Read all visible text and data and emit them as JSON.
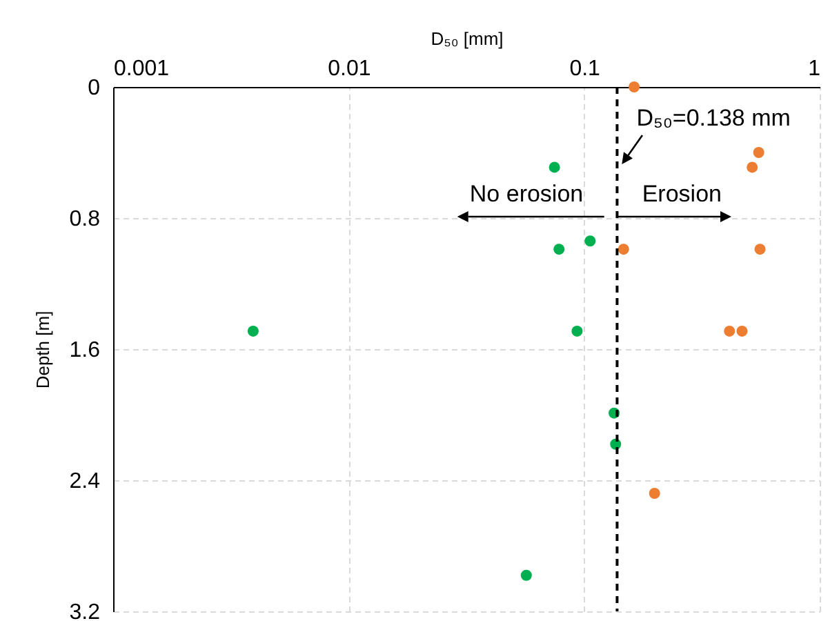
{
  "chart_data": {
    "type": "scatter",
    "xlabel": "D₅₀ [mm]",
    "ylabel": "Depth [m]",
    "log": "x",
    "xlim": [
      0.001,
      1
    ],
    "xticks": [
      0.001,
      0.01,
      0.1,
      1
    ],
    "ylim": [
      3.2,
      0
    ],
    "yticks": [
      0,
      0.8,
      1.6,
      2.4,
      3.2
    ],
    "grid": true,
    "marker": "circle",
    "series": [
      {
        "color": "#ed7d31",
        "x": [
          0.163,
          0.551,
          0.517,
          0.147,
          0.558,
          0.414,
          0.468,
          0.199
        ],
        "values": [
          0,
          0.4,
          0.49,
          0.99,
          0.99,
          1.49,
          1.49,
          2.48
        ]
      },
      {
        "color": "#00b050",
        "x": [
          0.0748,
          0.106,
          0.0782,
          0.00393,
          0.0933,
          0.134,
          0.136,
          0.0568
        ],
        "values": [
          0.49,
          0.94,
          0.99,
          1.49,
          1.49,
          1.99,
          2.18,
          2.98
        ]
      }
    ],
    "ref_lines": [
      {
        "axis": "x",
        "value": 0.138,
        "label": "D₅₀=0.138 mm",
        "color": "#000000",
        "line_style": "dashed"
      }
    ],
    "annotations": [
      "No erosion",
      "Erosion"
    ]
  }
}
